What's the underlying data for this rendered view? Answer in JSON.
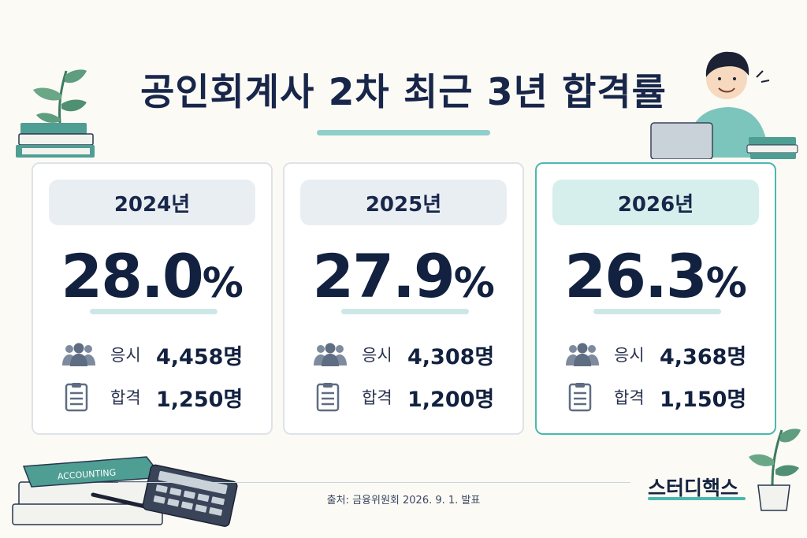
{
  "title": "공인회계사 2차 최근 3년 합격률",
  "cards": [
    {
      "year": "2024년",
      "rate": "28.0",
      "pct": "%",
      "apply_label": "응시",
      "apply_value": "4,458명",
      "pass_label": "합격",
      "pass_value": "1,250명"
    },
    {
      "year": "2025년",
      "rate": "27.9",
      "pct": "%",
      "apply_label": "응시",
      "apply_value": "4,308명",
      "pass_label": "합격",
      "pass_value": "1,200명"
    },
    {
      "year": "2026년",
      "rate": "26.3",
      "pct": "%",
      "apply_label": "응시",
      "apply_value": "4,368명",
      "pass_label": "합격",
      "pass_value": "1,150명"
    }
  ],
  "book_label": "ACCOUNTING",
  "source": "출처: 금융위원회 2026. 9. 1. 발표",
  "brand": "스터디핵스",
  "icons": {
    "apply": "people-icon",
    "pass": "clipboard-icon"
  },
  "colors": {
    "accent": "#4bb8b0",
    "navy": "#12213f",
    "pill": "#e9eef3",
    "pill_highlight": "#d6efec"
  }
}
